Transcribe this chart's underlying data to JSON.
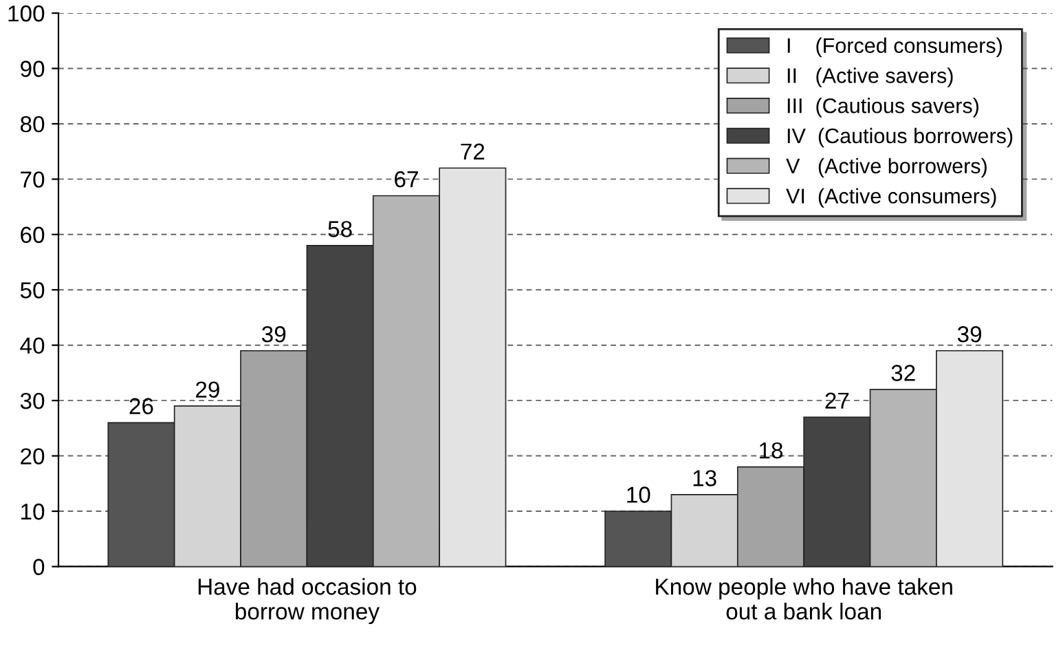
{
  "chart_data": {
    "type": "bar",
    "categories": [
      "Have had occasion to\nborrow money",
      "Know people who have taken\nout a bank loan"
    ],
    "series": [
      {
        "name": "I    (Forced consumers)",
        "color": "#555555",
        "values": [
          26,
          10
        ]
      },
      {
        "name": "II   (Active savers)",
        "color": "#d4d4d4",
        "values": [
          29,
          13
        ]
      },
      {
        "name": "III  (Cautious savers)",
        "color": "#a3a3a3",
        "values": [
          39,
          18
        ]
      },
      {
        "name": "IV  (Cautious borrowers)",
        "color": "#444444",
        "values": [
          58,
          27
        ]
      },
      {
        "name": "V   (Active borrowers)",
        "color": "#b5b5b5",
        "values": [
          67,
          32
        ]
      },
      {
        "name": "VI  (Active consumers)",
        "color": "#e3e3e3",
        "values": [
          72,
          39
        ]
      }
    ],
    "ylim": [
      0,
      100
    ],
    "yticks": [
      0,
      10,
      20,
      30,
      40,
      50,
      60,
      70,
      80,
      90,
      100
    ],
    "grid": "y",
    "legend": "top right",
    "data_labels": true
  }
}
